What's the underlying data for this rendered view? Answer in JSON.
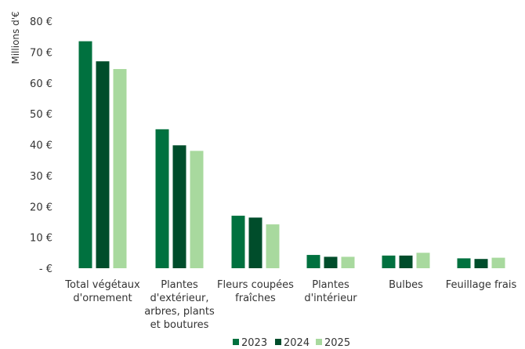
{
  "chart_data": {
    "type": "bar",
    "ylabel": "Millions d'€",
    "ylim": [
      0,
      80
    ],
    "yticks": [
      {
        "value": 0,
        "label": "-   €"
      },
      {
        "value": 10,
        "label": "10 €"
      },
      {
        "value": 20,
        "label": "20 €"
      },
      {
        "value": 30,
        "label": "30 €"
      },
      {
        "value": 40,
        "label": "40 €"
      },
      {
        "value": 50,
        "label": "50 €"
      },
      {
        "value": 60,
        "label": "60 €"
      },
      {
        "value": 70,
        "label": "70 €"
      },
      {
        "value": 80,
        "label": "80 €"
      }
    ],
    "categories": [
      [
        "Total végétaux",
        "d'ornement"
      ],
      [
        "Plantes",
        "d'extérieur,",
        "arbres, plants",
        "et boutures"
      ],
      [
        "Fleurs coupées",
        "fraîches"
      ],
      [
        "Plantes",
        "d'intérieur"
      ],
      [
        "Bulbes"
      ],
      [
        "Feuillage frais"
      ]
    ],
    "series": [
      {
        "name": "2023",
        "color": "#00713f",
        "values": [
          73.5,
          45.0,
          17.0,
          4.3,
          4.1,
          3.2
        ]
      },
      {
        "name": "2024",
        "color": "#004d2b",
        "values": [
          67.0,
          39.8,
          16.4,
          3.7,
          4.1,
          3.0
        ]
      },
      {
        "name": "2025",
        "color": "#a8d99e",
        "values": [
          64.5,
          38.0,
          14.2,
          3.7,
          5.0,
          3.4
        ]
      }
    ],
    "grid": false,
    "legend_position": "bottom"
  }
}
